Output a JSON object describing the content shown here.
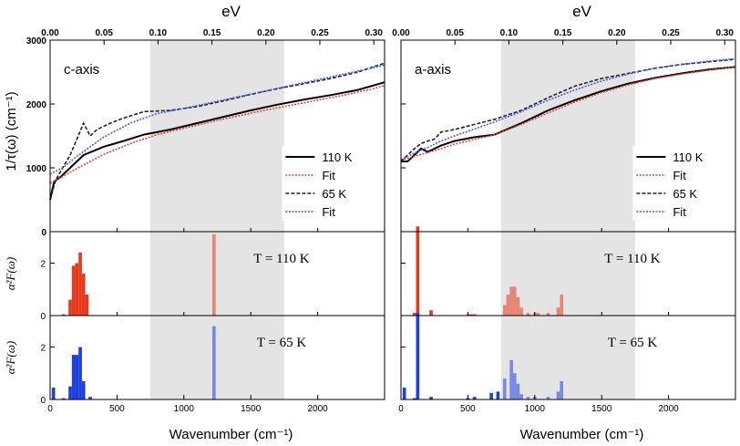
{
  "chart_data": {
    "type": "bar+line",
    "top_axis_label": "eV",
    "bottom_axis_label": "Wavenumber (cm⁻¹)",
    "x_range_cm": [
      0,
      2500
    ],
    "x_ticks_cm": [
      0,
      500,
      1000,
      1500,
      2000
    ],
    "ev_ticks": [
      0.0,
      0.05,
      0.1,
      0.15,
      0.2,
      0.25,
      0.3
    ],
    "ev_tick_labels": [
      "0.00",
      "0.05",
      "0.10",
      "0.15",
      "0.20",
      "0.25",
      "0.30"
    ],
    "ylabel_top": "1/τ(ω) (cm⁻¹)",
    "ylabel_bottom": "α²F(ω)",
    "ylim_top": [
      0,
      3000
    ],
    "yticks_top": [
      0,
      1000,
      2000,
      3000
    ],
    "ylim_bottom": [
      0,
      3.2
    ],
    "yticks_bottom": [
      0,
      2
    ],
    "shaded_region_cm": [
      750,
      1750
    ],
    "colors": {
      "k110": "#000000",
      "fit110": "#e0463c",
      "k65": "#222222",
      "fit65": "#4a5ee0",
      "bar110": "#e8391d",
      "bar65": "#1f3fe0",
      "shade": "#e4e4e4"
    },
    "legend": [
      {
        "label": "110 K",
        "style": "solid-black"
      },
      {
        "label": "Fit",
        "style": "dotted-red"
      },
      {
        "label": "65 K",
        "style": "dashed-black"
      },
      {
        "label": "Fit",
        "style": "dotted-blue"
      }
    ],
    "panels": [
      {
        "axis_label": "c-axis",
        "scattering_rate": [
          {
            "name": "110 K",
            "x": [
              0,
              30,
              80,
              150,
              250,
              400,
              550,
              700,
              900,
              1100,
              1300,
              1500,
              1700,
              1900,
              2100,
              2300,
              2500
            ],
            "y": [
              500,
              780,
              860,
              1000,
              1200,
              1330,
              1420,
              1520,
              1600,
              1700,
              1800,
              1900,
              1990,
              2070,
              2140,
              2220,
              2340
            ]
          },
          {
            "name": "Fit 110 K",
            "x": [
              0,
              100,
              200,
              400,
              600,
              800,
              1000,
              1200,
              1400,
              1600,
              1800,
              2000,
              2200,
              2400,
              2500
            ],
            "y": [
              760,
              870,
              990,
              1210,
              1380,
              1520,
              1620,
              1720,
              1810,
              1900,
              1980,
              2060,
              2140,
              2230,
              2290
            ]
          },
          {
            "name": "65 K",
            "x": [
              0,
              40,
              80,
              150,
              200,
              250,
              300,
              350,
              450,
              550,
              700,
              900,
              1100,
              1300,
              1500,
              1700,
              1900,
              2100,
              2300,
              2500
            ],
            "y": [
              500,
              800,
              950,
              1200,
              1450,
              1700,
              1500,
              1600,
              1700,
              1780,
              1880,
              1900,
              1960,
              2050,
              2150,
              2240,
              2320,
              2400,
              2500,
              2640
            ]
          },
          {
            "name": "Fit 65 K",
            "x": [
              0,
              100,
              200,
              400,
              600,
              800,
              1000,
              1200,
              1400,
              1600,
              1800,
              2000,
              2200,
              2400,
              2500
            ],
            "y": [
              900,
              1010,
              1180,
              1480,
              1700,
              1850,
              1930,
              2020,
              2110,
              2200,
              2290,
              2380,
              2470,
              2560,
              2610
            ]
          }
        ],
        "phonon_110K": {
          "label": "T = 110 K",
          "centers": [
            100,
            150,
            175,
            200,
            225,
            250,
            275,
            1225
          ],
          "values": [
            0.05,
            0.6,
            1.9,
            2.0,
            2.4,
            1.6,
            0.8,
            3.1
          ]
        },
        "phonon_65K": {
          "label": "T = 65 K",
          "centers": [
            25,
            100,
            150,
            175,
            200,
            225,
            250,
            300,
            1225
          ],
          "values": [
            0.45,
            0.05,
            0.5,
            1.7,
            1.7,
            2.0,
            0.7,
            0.1,
            2.8
          ]
        }
      },
      {
        "axis_label": "a-axis",
        "scattering_rate": [
          {
            "name": "110 K",
            "x": [
              0,
              50,
              100,
              150,
              200,
              300,
              400,
              550,
              700,
              900,
              1100,
              1300,
              1500,
              1700,
              1900,
              2100,
              2300,
              2500
            ],
            "y": [
              1100,
              1100,
              1200,
              1300,
              1250,
              1350,
              1420,
              1480,
              1520,
              1700,
              1900,
              2060,
              2200,
              2320,
              2410,
              2480,
              2540,
              2580
            ]
          },
          {
            "name": "Fit 110 K",
            "x": [
              0,
              100,
              200,
              300,
              400,
              500,
              700,
              900,
              1100,
              1300,
              1500,
              1700,
              1900,
              2100,
              2300,
              2500
            ],
            "y": [
              1120,
              1180,
              1240,
              1300,
              1370,
              1420,
              1520,
              1680,
              1860,
              2030,
              2180,
              2300,
              2400,
              2470,
              2530,
              2580
            ]
          },
          {
            "name": "65 K",
            "x": [
              0,
              50,
              100,
              150,
              200,
              250,
              300,
              400,
              550,
              700,
              900,
              1100,
              1300,
              1500,
              1700,
              1900,
              2100,
              2300,
              2500
            ],
            "y": [
              1100,
              1200,
              1300,
              1380,
              1420,
              1450,
              1560,
              1600,
              1680,
              1760,
              1900,
              2100,
              2280,
              2400,
              2480,
              2560,
              2620,
              2660,
              2700
            ]
          },
          {
            "name": "Fit 65 K",
            "x": [
              0,
              100,
              200,
              300,
              400,
              500,
              700,
              900,
              1100,
              1300,
              1500,
              1700,
              1900,
              2100,
              2300,
              2500
            ],
            "y": [
              1130,
              1230,
              1320,
              1420,
              1500,
              1570,
              1720,
              1880,
              2060,
              2220,
              2360,
              2470,
              2560,
              2620,
              2670,
              2710
            ]
          }
        ],
        "phonon_110K": {
          "label": "T = 110 K",
          "centers": [
            100,
            125,
            225,
            500,
            525,
            550,
            775,
            800,
            825,
            850,
            875,
            900,
            950,
            1000,
            1025,
            1100,
            1175,
            1200
          ],
          "values": [
            0.1,
            3.4,
            0.2,
            0.05,
            0.05,
            0.05,
            0.4,
            0.8,
            1.1,
            1.1,
            0.7,
            0.3,
            0.1,
            0.1,
            0.1,
            0.1,
            0.3,
            0.8
          ]
        },
        "phonon_65K": {
          "label": "T = 65 K",
          "centers": [
            25,
            100,
            125,
            225,
            500,
            550,
            675,
            725,
            775,
            825,
            850,
            875,
            900,
            950,
            1000,
            1100,
            1175,
            1200
          ],
          "values": [
            0.45,
            0.05,
            3.3,
            0.1,
            0.05,
            0.1,
            0.25,
            0.3,
            0.8,
            1.5,
            1.0,
            0.6,
            0.2,
            0.1,
            0.1,
            0.1,
            0.3,
            0.7
          ]
        }
      }
    ]
  }
}
